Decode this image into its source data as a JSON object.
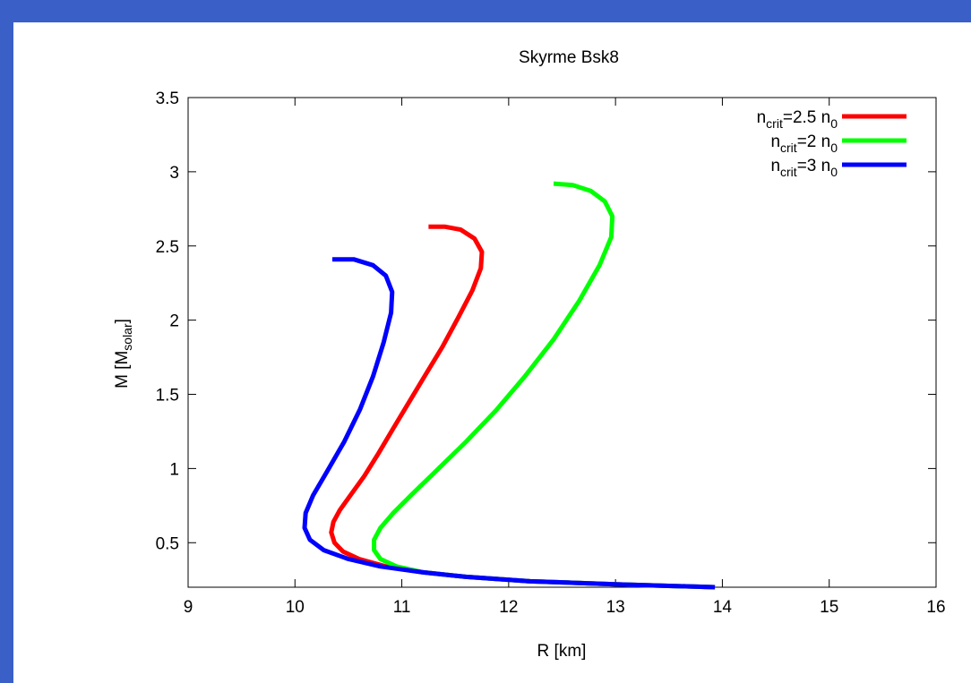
{
  "chart_data": {
    "type": "line",
    "title": "Skyrme Bsk8",
    "xlabel": "R [km]",
    "ylabel": {
      "base": "M [M",
      "sub": "solar",
      "suffix": "]"
    },
    "xlim": [
      9,
      16
    ],
    "ylim": [
      0.2,
      3.5
    ],
    "xticks": [
      "9",
      "10",
      "11",
      "12",
      "13",
      "14",
      "15",
      "16"
    ],
    "xtick_values": [
      9,
      10,
      11,
      12,
      13,
      14,
      15,
      16
    ],
    "yticks": [
      "0.5",
      "1",
      "1.5",
      "2",
      "2.5",
      "3",
      "3.5"
    ],
    "ytick_values": [
      0.5,
      1,
      1.5,
      2,
      2.5,
      3,
      3.5
    ],
    "legend_position": "top-right",
    "series": [
      {
        "legend": {
          "base": "n",
          "sub1": "crit",
          "mid": "=2.5 n",
          "sub2": "0"
        },
        "color": "#ff0000",
        "points": [
          [
            13.93,
            0.2
          ],
          [
            13.0,
            0.22
          ],
          [
            12.2,
            0.24
          ],
          [
            11.6,
            0.27
          ],
          [
            11.2,
            0.3
          ],
          [
            10.85,
            0.34
          ],
          [
            10.6,
            0.39
          ],
          [
            10.45,
            0.44
          ],
          [
            10.37,
            0.5
          ],
          [
            10.34,
            0.57
          ],
          [
            10.36,
            0.64
          ],
          [
            10.42,
            0.72
          ],
          [
            10.52,
            0.82
          ],
          [
            10.65,
            0.95
          ],
          [
            10.78,
            1.1
          ],
          [
            10.92,
            1.27
          ],
          [
            11.07,
            1.45
          ],
          [
            11.22,
            1.63
          ],
          [
            11.38,
            1.82
          ],
          [
            11.53,
            2.02
          ],
          [
            11.66,
            2.2
          ],
          [
            11.74,
            2.35
          ],
          [
            11.75,
            2.46
          ],
          [
            11.68,
            2.55
          ],
          [
            11.55,
            2.61
          ],
          [
            11.4,
            2.63
          ],
          [
            11.25,
            2.63
          ]
        ]
      },
      {
        "legend": {
          "base": "n",
          "sub1": "crit",
          "mid": "=2 n",
          "sub2": "0"
        },
        "color": "#00ff00",
        "points": [
          [
            13.93,
            0.2
          ],
          [
            13.0,
            0.22
          ],
          [
            12.2,
            0.24
          ],
          [
            11.6,
            0.27
          ],
          [
            11.2,
            0.3
          ],
          [
            10.95,
            0.34
          ],
          [
            10.8,
            0.39
          ],
          [
            10.74,
            0.45
          ],
          [
            10.74,
            0.52
          ],
          [
            10.8,
            0.6
          ],
          [
            10.92,
            0.7
          ],
          [
            11.1,
            0.83
          ],
          [
            11.33,
            0.99
          ],
          [
            11.6,
            1.18
          ],
          [
            11.88,
            1.39
          ],
          [
            12.15,
            1.62
          ],
          [
            12.42,
            1.87
          ],
          [
            12.66,
            2.13
          ],
          [
            12.85,
            2.37
          ],
          [
            12.96,
            2.56
          ],
          [
            12.97,
            2.7
          ],
          [
            12.9,
            2.8
          ],
          [
            12.77,
            2.87
          ],
          [
            12.6,
            2.91
          ],
          [
            12.42,
            2.92
          ]
        ]
      },
      {
        "legend": {
          "base": "n",
          "sub1": "crit",
          "mid": "=3 n",
          "sub2": "0"
        },
        "color": "#0000ff",
        "points": [
          [
            13.93,
            0.2
          ],
          [
            13.0,
            0.22
          ],
          [
            12.2,
            0.24
          ],
          [
            11.6,
            0.27
          ],
          [
            11.2,
            0.3
          ],
          [
            10.8,
            0.34
          ],
          [
            10.5,
            0.39
          ],
          [
            10.27,
            0.45
          ],
          [
            10.14,
            0.52
          ],
          [
            10.09,
            0.6
          ],
          [
            10.1,
            0.7
          ],
          [
            10.17,
            0.82
          ],
          [
            10.3,
            0.98
          ],
          [
            10.46,
            1.18
          ],
          [
            10.61,
            1.4
          ],
          [
            10.73,
            1.62
          ],
          [
            10.83,
            1.85
          ],
          [
            10.9,
            2.05
          ],
          [
            10.91,
            2.19
          ],
          [
            10.85,
            2.3
          ],
          [
            10.73,
            2.37
          ],
          [
            10.55,
            2.41
          ],
          [
            10.35,
            2.41
          ]
        ]
      }
    ]
  }
}
